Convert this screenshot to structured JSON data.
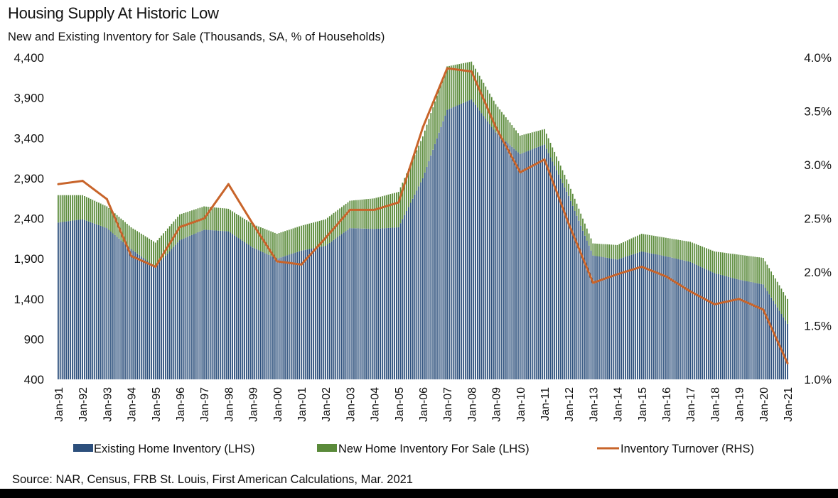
{
  "chart_data": {
    "type": "bar+line",
    "title": "Housing Supply At Historic Low",
    "subtitle": "New and Existing Inventory for Sale (Thousands, SA, % of Households)",
    "source": "Source: NAR, Census, FRB St. Louis, First American Calculations,  Mar. 2021",
    "left_axis": {
      "ylim": [
        400,
        4400
      ],
      "ticks": [
        400,
        900,
        1400,
        1900,
        2400,
        2900,
        3400,
        3900,
        4400
      ],
      "tick_labels": [
        "400",
        "900",
        "1,400",
        "1,900",
        "2,400",
        "2,900",
        "3,400",
        "3,900",
        "4,400"
      ]
    },
    "right_axis": {
      "ylim": [
        1.0,
        4.0
      ],
      "tick_labels": [
        "1.0%",
        "1.5%",
        "2.0%",
        "2.5%",
        "3.0%",
        "3.5%",
        "4.0%"
      ],
      "ticks": [
        1.0,
        1.5,
        2.0,
        2.5,
        3.0,
        3.5,
        4.0
      ]
    },
    "categories": [
      "Jan-91",
      "Jan-92",
      "Jan-93",
      "Jan-94",
      "Jan-95",
      "Jan-96",
      "Jan-97",
      "Jan-98",
      "Jan-99",
      "Jan-00",
      "Jan-01",
      "Jan-02",
      "Jan-03",
      "Jan-04",
      "Jan-05",
      "Jan-06",
      "Jan-07",
      "Jan-08",
      "Jan-09",
      "Jan-10",
      "Jan-11",
      "Jan-12",
      "Jan-13",
      "Jan-14",
      "Jan-15",
      "Jan-16",
      "Jan-17",
      "Jan-18",
      "Jan-19",
      "Jan-20",
      "Jan-21"
    ],
    "series": [
      {
        "name": "Existing Home Inventory (LHS)",
        "color": "#2c4f7c",
        "values": [
          2350,
          2390,
          2280,
          2020,
          1800,
          2130,
          2260,
          2240,
          2040,
          1900,
          2000,
          2060,
          2280,
          2270,
          2290,
          2900,
          3750,
          3880,
          3470,
          3200,
          3320,
          2680,
          1940,
          1890,
          1990,
          1930,
          1860,
          1720,
          1640,
          1580,
          1090
        ]
      },
      {
        "name": "New Home Inventory For Sale (LHS)",
        "color": "#5a8a3a",
        "values": [
          340,
          300,
          270,
          270,
          300,
          320,
          290,
          280,
          290,
          310,
          310,
          330,
          340,
          380,
          440,
          520,
          540,
          470,
          350,
          230,
          190,
          150,
          150,
          180,
          220,
          230,
          250,
          270,
          310,
          330,
          310
        ]
      },
      {
        "name": "Inventory Turnover (RHS)",
        "color": "#c8642a",
        "values": [
          2.82,
          2.85,
          2.68,
          2.15,
          2.05,
          2.42,
          2.5,
          2.82,
          2.45,
          2.1,
          2.07,
          2.32,
          2.58,
          2.58,
          2.65,
          3.35,
          3.9,
          3.87,
          3.35,
          2.93,
          3.05,
          2.45,
          1.9,
          1.98,
          2.05,
          1.96,
          1.82,
          1.7,
          1.75,
          1.65,
          1.15
        ]
      }
    ],
    "legend": [
      "Existing Home Inventory (LHS)",
      "New Home Inventory For Sale (LHS)",
      "Inventory Turnover (RHS)"
    ],
    "legend_position": "bottom"
  }
}
